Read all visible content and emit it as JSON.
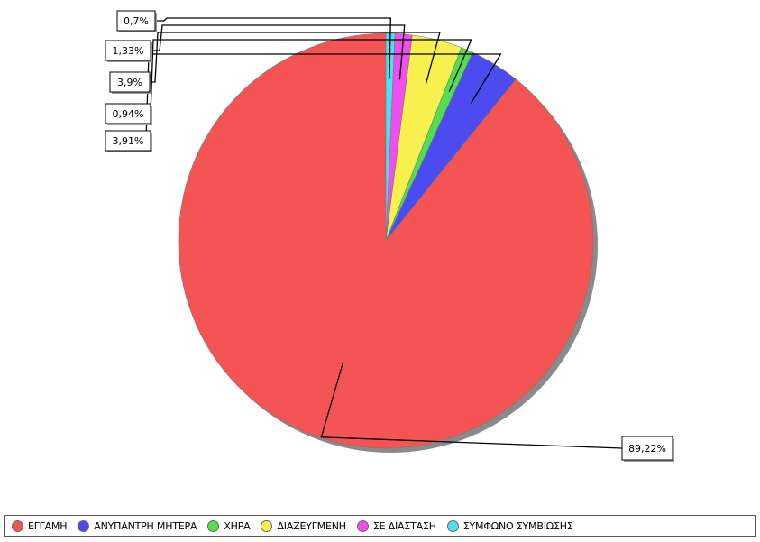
{
  "chart_data": {
    "type": "pie",
    "categories": [
      "ΕΓΓΑΜΗ",
      "ΑΝΥΠΑΝΤΡΗ ΜΗΤΕΡΑ",
      "ΧΗΡΑ",
      "ΔΙΑΖΕΥΓΜΕΝΗ",
      "ΣΕ ΔΙΑΣΤΑΣΗ",
      "ΣΥΜΦΩΝΟ ΣΥΜΒΙΩΣΗΣ"
    ],
    "values": [
      89.22,
      3.91,
      0.94,
      3.9,
      1.33,
      0.7
    ],
    "data_labels": [
      "89,22%",
      "3,91%",
      "0,94%",
      "3,9%",
      "1,33%",
      "0,7%"
    ],
    "colors": [
      "#f45454",
      "#4b4bf0",
      "#4fe04f",
      "#f7f04f",
      "#ef4fef",
      "#4fdff0"
    ],
    "legend_position": "bottom"
  }
}
